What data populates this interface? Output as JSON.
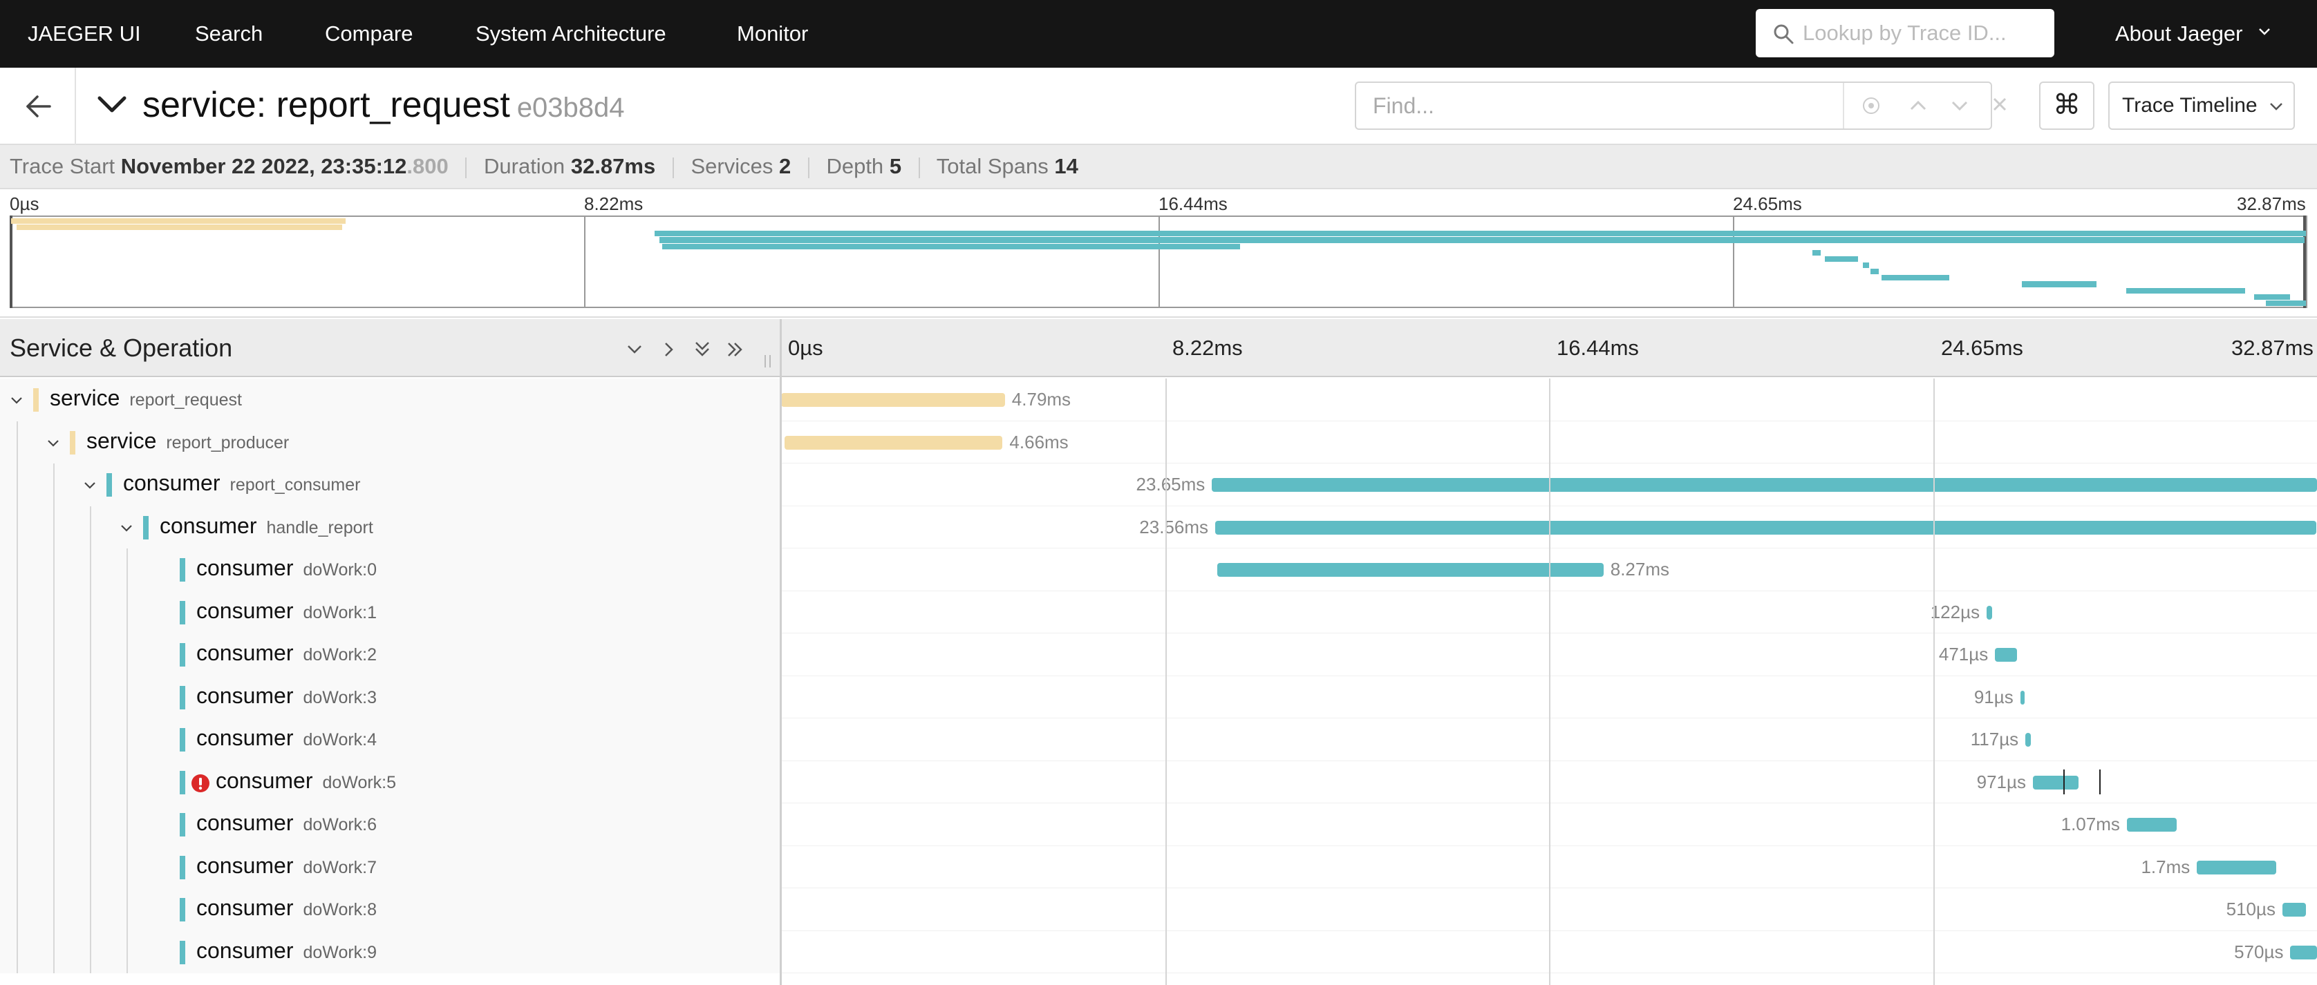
{
  "nav": {
    "brand": "JAEGER UI",
    "items": [
      "Search",
      "Compare",
      "System Architecture",
      "Monitor"
    ],
    "lookup_placeholder": "Lookup by Trace ID...",
    "about": "About Jaeger"
  },
  "trace": {
    "title": "service: report_request",
    "trace_id": "e03b8d4",
    "find_placeholder": "Find...",
    "view_mode": "Trace Timeline",
    "kbd_icon": "⌘"
  },
  "summary": {
    "start_label": "Trace Start",
    "start_value": "November 22 2022, 23:35:12",
    "start_ms": ".800",
    "duration_label": "Duration",
    "duration_value": "32.87ms",
    "services_label": "Services",
    "services_value": "2",
    "depth_label": "Depth",
    "depth_value": "5",
    "spans_label": "Total Spans",
    "spans_value": "14"
  },
  "timeline": {
    "total_ms": 32.87,
    "ticks": [
      "0µs",
      "8.22ms",
      "16.44ms",
      "24.65ms",
      "32.87ms"
    ],
    "column_title": "Service & Operation"
  },
  "colors": {
    "service": "#f4dca6",
    "consumer": "#5fbcc4",
    "error": "#db2828"
  },
  "icons": {
    "expand_one": "chevron-down-icon",
    "collapse_one": "chevron-right-icon",
    "expand_all": "double-chevron-down-icon",
    "collapse_all": "double-chevron-right-icon"
  },
  "spans": [
    {
      "service": "service",
      "operation": "report_request",
      "depth": 0,
      "has_children": true,
      "start_ms": 0.0,
      "duration_ms": 4.79,
      "label": "4.79ms",
      "error": false
    },
    {
      "service": "service",
      "operation": "report_producer",
      "depth": 1,
      "has_children": true,
      "start_ms": 0.08,
      "duration_ms": 4.66,
      "label": "4.66ms",
      "error": false
    },
    {
      "service": "consumer",
      "operation": "report_consumer",
      "depth": 2,
      "has_children": true,
      "start_ms": 9.22,
      "duration_ms": 23.65,
      "label": "23.65ms",
      "error": false
    },
    {
      "service": "consumer",
      "operation": "handle_report",
      "depth": 3,
      "has_children": true,
      "start_ms": 9.29,
      "duration_ms": 23.56,
      "label": "23.56ms",
      "error": false
    },
    {
      "service": "consumer",
      "operation": "doWork:0",
      "depth": 4,
      "has_children": false,
      "start_ms": 9.33,
      "duration_ms": 8.27,
      "label": "8.27ms",
      "error": false
    },
    {
      "service": "consumer",
      "operation": "doWork:1",
      "depth": 4,
      "has_children": false,
      "start_ms": 25.8,
      "duration_ms": 0.122,
      "label": "122µs",
      "error": false
    },
    {
      "service": "consumer",
      "operation": "doWork:2",
      "depth": 4,
      "has_children": false,
      "start_ms": 25.98,
      "duration_ms": 0.471,
      "label": "471µs",
      "error": false
    },
    {
      "service": "consumer",
      "operation": "doWork:3",
      "depth": 4,
      "has_children": false,
      "start_ms": 26.52,
      "duration_ms": 0.091,
      "label": "91µs",
      "error": false
    },
    {
      "service": "consumer",
      "operation": "doWork:4",
      "depth": 4,
      "has_children": false,
      "start_ms": 26.63,
      "duration_ms": 0.117,
      "label": "117µs",
      "error": false
    },
    {
      "service": "consumer",
      "operation": "doWork:5",
      "depth": 4,
      "has_children": false,
      "start_ms": 26.79,
      "duration_ms": 0.971,
      "label": "971µs",
      "error": true
    },
    {
      "service": "consumer",
      "operation": "doWork:6",
      "depth": 4,
      "has_children": false,
      "start_ms": 28.8,
      "duration_ms": 1.07,
      "label": "1.07ms",
      "error": false
    },
    {
      "service": "consumer",
      "operation": "doWork:7",
      "depth": 4,
      "has_children": false,
      "start_ms": 30.3,
      "duration_ms": 1.7,
      "label": "1.7ms",
      "error": false
    },
    {
      "service": "consumer",
      "operation": "doWork:8",
      "depth": 4,
      "has_children": false,
      "start_ms": 32.13,
      "duration_ms": 0.51,
      "label": "510µs",
      "error": false
    },
    {
      "service": "consumer",
      "operation": "doWork:9",
      "depth": 4,
      "has_children": false,
      "start_ms": 32.3,
      "duration_ms": 0.57,
      "label": "570µs",
      "error": false
    }
  ]
}
